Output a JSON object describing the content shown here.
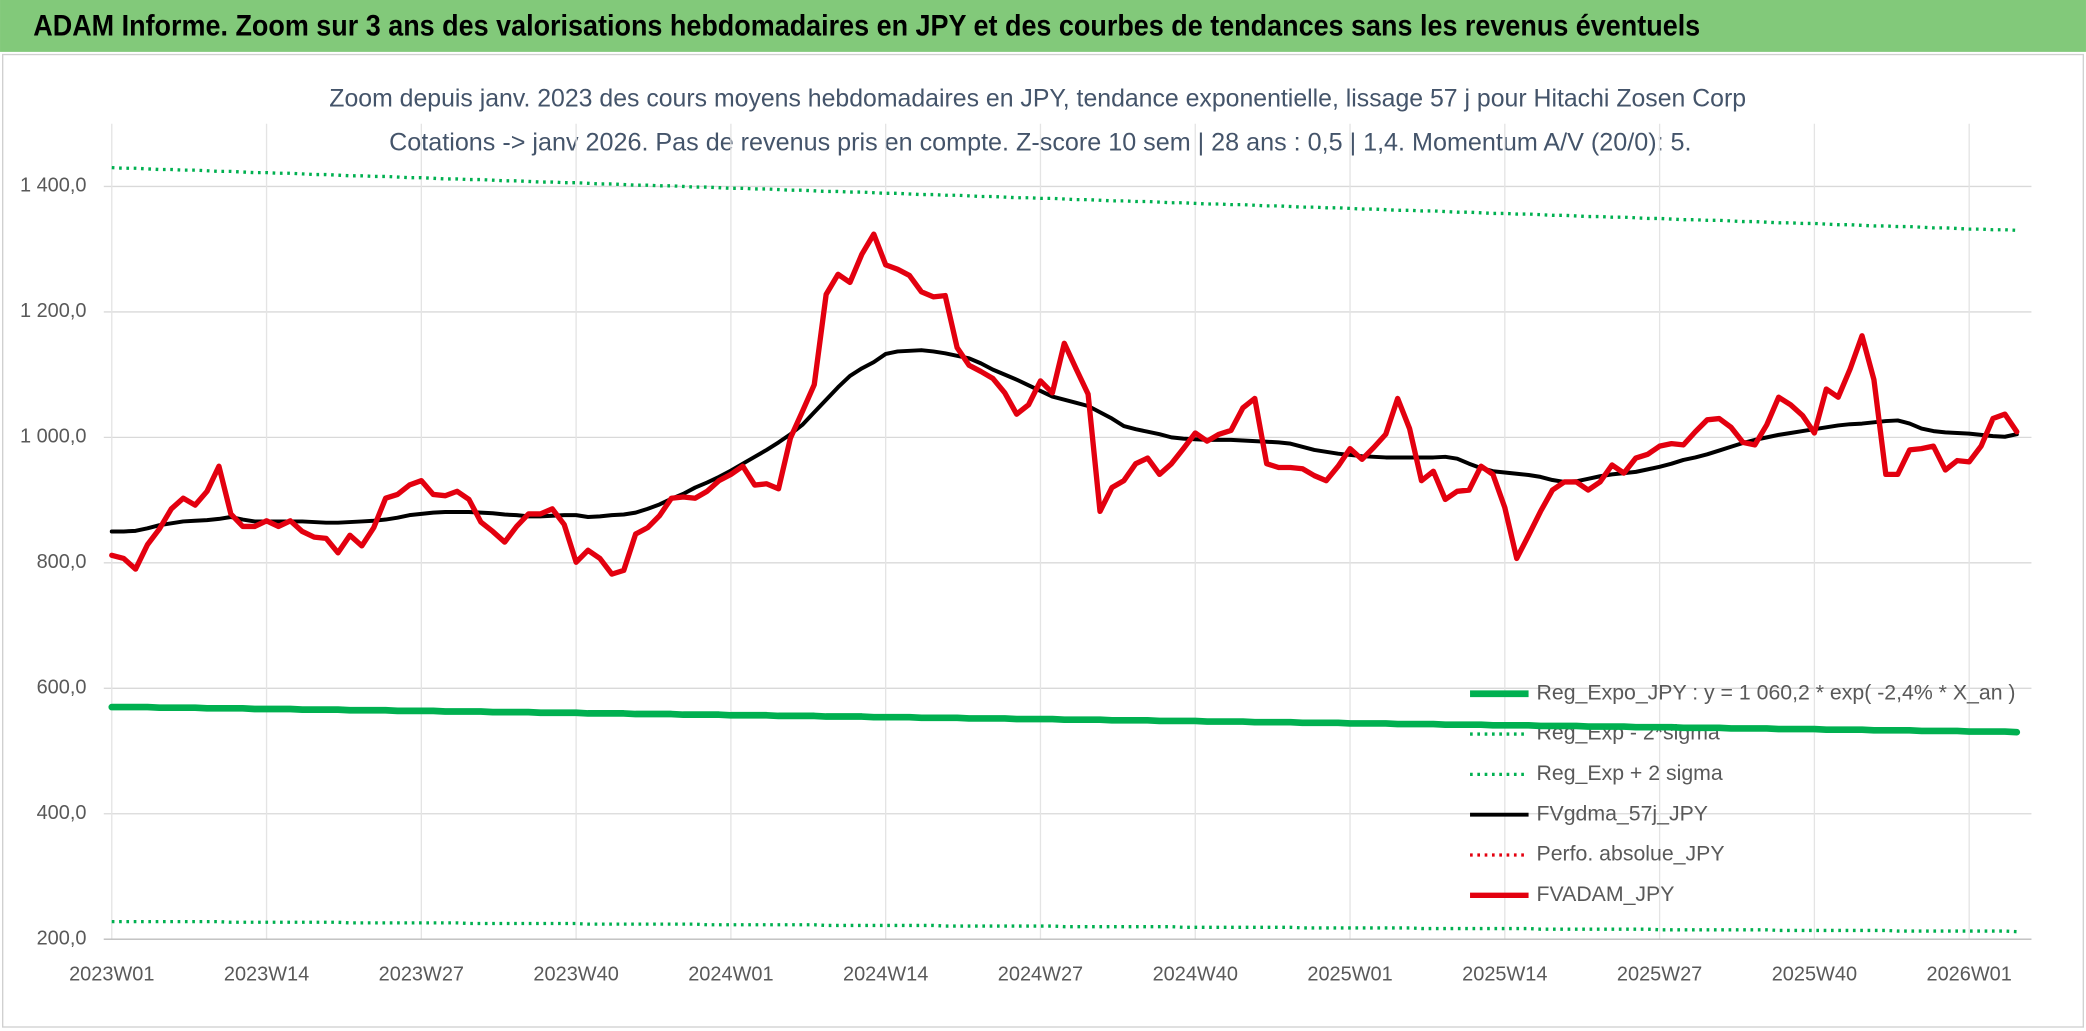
{
  "header": {
    "title": "ADAM Informe. Zoom sur 3 ans des valorisations hebdomadaires en JPY et des courbes de tendances sans les revenus éventuels"
  },
  "chart_data": {
    "type": "line",
    "title": "Zoom depuis janv. 2023 des cours moyens hebdomadaires en JPY, tendance exponentielle, lissage 57 j pour Hitachi Zosen Corp",
    "subtitle": "Cotations -> janv 2026. Pas de revenus pris en compte. Z-score 10 sem | 28 ans : 0,5 | 1,4. Momentum A/V (20/0): 5.",
    "categories": [
      "2023W01",
      null,
      null,
      null,
      null,
      null,
      null,
      null,
      null,
      null,
      null,
      null,
      null,
      "2023W14",
      null,
      null,
      null,
      null,
      null,
      null,
      null,
      null,
      null,
      null,
      null,
      null,
      "2023W27",
      null,
      null,
      null,
      null,
      null,
      null,
      null,
      null,
      null,
      null,
      null,
      null,
      "2023W40",
      null,
      null,
      null,
      null,
      null,
      null,
      null,
      null,
      null,
      null,
      null,
      null,
      "2024W01",
      null,
      null,
      null,
      null,
      null,
      null,
      null,
      null,
      null,
      null,
      null,
      null,
      "2024W14",
      null,
      null,
      null,
      null,
      null,
      null,
      null,
      null,
      null,
      null,
      null,
      null,
      "2024W27",
      null,
      null,
      null,
      null,
      null,
      null,
      null,
      null,
      null,
      null,
      null,
      null,
      "2024W40",
      null,
      null,
      null,
      null,
      null,
      null,
      null,
      null,
      null,
      null,
      null,
      null,
      "2025W01",
      null,
      null,
      null,
      null,
      null,
      null,
      null,
      null,
      null,
      null,
      null,
      null,
      "2025W14",
      null,
      null,
      null,
      null,
      null,
      null,
      null,
      null,
      null,
      null,
      null,
      null,
      "2025W27",
      null,
      null,
      null,
      null,
      null,
      null,
      null,
      null,
      null,
      null,
      null,
      null,
      "2025W40",
      null,
      null,
      null,
      null,
      null,
      null,
      null,
      null,
      null,
      null,
      null,
      null,
      "2026W01",
      null,
      null,
      null,
      null
    ],
    "ylim": [
      200,
      1500
    ],
    "yticks": [
      {
        "value": 200,
        "label": "200,0"
      },
      {
        "value": 400,
        "label": "400,0"
      },
      {
        "value": 600,
        "label": "600,0"
      },
      {
        "value": 800,
        "label": "800,0"
      },
      {
        "value": 1000,
        "label": "1 000,0"
      },
      {
        "value": 1200,
        "label": "1 200,0"
      },
      {
        "value": 1400,
        "label": "1 400,0"
      }
    ],
    "grid": true,
    "legend": "bottom-right",
    "series": [
      {
        "name": "Reg_Expo_JPY : y = 1 060,2 * exp( -2,4% * X_an )",
        "color": "#00b050",
        "style": "solid",
        "values": [
          570,
          570,
          570,
          570,
          569,
          569,
          569,
          569,
          568,
          568,
          568,
          568,
          567,
          567,
          567,
          567,
          566,
          566,
          566,
          566,
          565,
          565,
          565,
          565,
          564,
          564,
          564,
          564,
          563,
          563,
          563,
          563,
          562,
          562,
          562,
          562,
          561,
          561,
          561,
          561,
          560,
          560,
          560,
          560,
          559,
          559,
          559,
          559,
          558,
          558,
          558,
          558,
          557,
          557,
          557,
          557,
          556,
          556,
          556,
          556,
          555,
          555,
          555,
          555,
          554,
          554,
          554,
          554,
          553,
          553,
          553,
          553,
          552,
          552,
          552,
          552,
          551,
          551,
          551,
          551,
          550,
          550,
          550,
          550,
          549,
          549,
          549,
          549,
          548,
          548,
          548,
          548,
          547,
          547,
          547,
          547,
          546,
          546,
          546,
          546,
          545,
          545,
          545,
          545,
          544,
          544,
          544,
          544,
          543,
          543,
          543,
          543,
          542,
          542,
          542,
          542,
          541,
          541,
          541,
          541,
          540,
          540,
          540,
          540,
          539,
          539,
          539,
          539,
          538,
          538,
          538,
          538,
          537,
          537,
          537,
          537,
          536,
          536,
          536,
          536,
          535,
          535,
          535,
          535,
          534,
          534,
          534,
          534,
          533,
          533,
          533,
          533,
          532,
          532,
          532,
          532,
          531,
          531,
          531,
          531,
          530
        ]
      },
      {
        "name": "Reg_Exp - 2*sigma",
        "color": "#00b050",
        "style": "dotted",
        "values": [
          228,
          228,
          228,
          228,
          228,
          228,
          228,
          228,
          228,
          228,
          227,
          227,
          227,
          227,
          227,
          227,
          227,
          227,
          227,
          227,
          226,
          226,
          226,
          226,
          226,
          226,
          226,
          226,
          226,
          226,
          225,
          225,
          225,
          225,
          225,
          225,
          225,
          225,
          225,
          225,
          224,
          224,
          224,
          224,
          224,
          224,
          224,
          224,
          224,
          224,
          223,
          223,
          223,
          223,
          223,
          223,
          223,
          223,
          223,
          223,
          222,
          222,
          222,
          222,
          222,
          222,
          222,
          222,
          222,
          222,
          221,
          221,
          221,
          221,
          221,
          221,
          221,
          221,
          221,
          221,
          220,
          220,
          220,
          220,
          220,
          220,
          220,
          220,
          220,
          220,
          219,
          219,
          219,
          219,
          219,
          219,
          219,
          219,
          219,
          219,
          218,
          218,
          218,
          218,
          218,
          218,
          218,
          218,
          218,
          218,
          217,
          217,
          217,
          217,
          217,
          217,
          217,
          217,
          217,
          217,
          216,
          216,
          216,
          216,
          216,
          216,
          216,
          216,
          216,
          216,
          215,
          215,
          215,
          215,
          215,
          215,
          215,
          215,
          215,
          215,
          214,
          214,
          214,
          214,
          214,
          214,
          214,
          214,
          214,
          214,
          213,
          213,
          213,
          213,
          213,
          213,
          213,
          213,
          213,
          213,
          212
        ]
      },
      {
        "name": "Reg_Exp + 2 sigma",
        "color": "#00b050",
        "style": "dotted",
        "values": [
          1430,
          1429,
          1429,
          1428,
          1427,
          1427,
          1426,
          1426,
          1425,
          1424,
          1424,
          1423,
          1422,
          1422,
          1421,
          1421,
          1420,
          1419,
          1419,
          1418,
          1417,
          1417,
          1416,
          1416,
          1415,
          1414,
          1414,
          1413,
          1412,
          1412,
          1411,
          1411,
          1410,
          1409,
          1409,
          1408,
          1407,
          1407,
          1406,
          1406,
          1405,
          1404,
          1404,
          1403,
          1402,
          1402,
          1401,
          1401,
          1400,
          1399,
          1399,
          1398,
          1397,
          1397,
          1396,
          1396,
          1395,
          1394,
          1394,
          1393,
          1392,
          1392,
          1391,
          1391,
          1390,
          1389,
          1389,
          1388,
          1387,
          1387,
          1386,
          1386,
          1385,
          1384,
          1384,
          1383,
          1382,
          1382,
          1381,
          1381,
          1380,
          1379,
          1379,
          1378,
          1377,
          1377,
          1376,
          1376,
          1375,
          1374,
          1374,
          1373,
          1372,
          1372,
          1371,
          1371,
          1370,
          1369,
          1369,
          1368,
          1367,
          1367,
          1366,
          1366,
          1365,
          1364,
          1364,
          1363,
          1362,
          1362,
          1361,
          1361,
          1360,
          1359,
          1359,
          1358,
          1357,
          1357,
          1356,
          1356,
          1355,
          1354,
          1354,
          1353,
          1352,
          1352,
          1351,
          1351,
          1350,
          1349,
          1349,
          1348,
          1347,
          1347,
          1346,
          1346,
          1345,
          1344,
          1344,
          1343,
          1342,
          1342,
          1341,
          1341,
          1340,
          1339,
          1339,
          1338,
          1337,
          1337,
          1336,
          1336,
          1335,
          1334,
          1334,
          1333,
          1332,
          1332,
          1331,
          1331,
          1330
        ]
      },
      {
        "name": "FVgdma_57j_JPY",
        "color": "#000000",
        "style": "solid",
        "values": [
          850,
          850,
          851,
          855,
          860,
          863,
          866,
          867,
          868,
          870,
          873,
          869,
          866,
          866,
          866,
          866,
          866,
          865,
          864,
          864,
          865,
          866,
          867,
          869,
          872,
          876,
          878,
          880,
          881,
          881,
          881,
          880,
          879,
          877,
          876,
          874,
          874,
          875,
          876,
          876,
          873,
          874,
          876,
          877,
          880,
          886,
          893,
          902,
          910,
          920,
          928,
          937,
          947,
          958,
          969,
          980,
          992,
          1005,
          1020,
          1040,
          1060,
          1080,
          1098,
          1110,
          1120,
          1133,
          1137,
          1138,
          1139,
          1137,
          1134,
          1130,
          1126,
          1118,
          1108,
          1100,
          1092,
          1083,
          1074,
          1065,
          1060,
          1055,
          1050,
          1040,
          1030,
          1018,
          1013,
          1009,
          1005,
          1000,
          998,
          997,
          996,
          996,
          996,
          995,
          994,
          993,
          992,
          990,
          985,
          980,
          977,
          974,
          972,
          970,
          969,
          968,
          968,
          968,
          968,
          968,
          969,
          966,
          958,
          951,
          946,
          944,
          942,
          940,
          937,
          932,
          929,
          930,
          934,
          938,
          941,
          943,
          945,
          949,
          953,
          958,
          964,
          968,
          973,
          979,
          985,
          991,
          996,
          1000,
          1004,
          1007,
          1010,
          1013,
          1016,
          1019,
          1021,
          1022,
          1024,
          1026,
          1027,
          1022,
          1014,
          1010,
          1008,
          1007,
          1006,
          1004,
          1002,
          1001,
          1005
        ]
      },
      {
        "name": "Perfo. absolue_JPY",
        "color": "#e3000f",
        "style": "dotted",
        "values": [
          null,
          null,
          null,
          null,
          null,
          null,
          null,
          null,
          null,
          null,
          null,
          null,
          null,
          null,
          null,
          null,
          null,
          null,
          null,
          null,
          null,
          null,
          null,
          null,
          null,
          null,
          null,
          null,
          null,
          null,
          null,
          null,
          null,
          null,
          null,
          null,
          null,
          null,
          null,
          null,
          null,
          null,
          null,
          null,
          null,
          null,
          null,
          null,
          null,
          null,
          null,
          null,
          null,
          null,
          null,
          null,
          null,
          null,
          null,
          null,
          null,
          null,
          null,
          null,
          null,
          null,
          null,
          null,
          null,
          null,
          null,
          null,
          null,
          null,
          null,
          null,
          null,
          null,
          null,
          null,
          null,
          null,
          null,
          null,
          null,
          null,
          null,
          null,
          null,
          null,
          null,
          null,
          null,
          null,
          null,
          null,
          null,
          null,
          null,
          null,
          null,
          null,
          null,
          null,
          null,
          null,
          null,
          null,
          null,
          null,
          null,
          null,
          null,
          null,
          null,
          null,
          null,
          null,
          null,
          null,
          null,
          null,
          null,
          null,
          null,
          null,
          null,
          null,
          null,
          null,
          null,
          null,
          null,
          null,
          null,
          null,
          null,
          null,
          null,
          null,
          null,
          null,
          null,
          null,
          null,
          null,
          null,
          null,
          null,
          null,
          null,
          null,
          null,
          null,
          null,
          null,
          null,
          null,
          null,
          null,
          null
        ]
      },
      {
        "name": "FVADAM_JPY",
        "color": "#e3000f",
        "style": "solid",
        "values": [
          812,
          807,
          790,
          829,
          854,
          886,
          903,
          892,
          914,
          954,
          878,
          858,
          858,
          867,
          858,
          867,
          850,
          841,
          839,
          816,
          844,
          827,
          856,
          903,
          909,
          924,
          931,
          909,
          907,
          914,
          901,
          865,
          850,
          833,
          858,
          878,
          878,
          886,
          861,
          801,
          820,
          807,
          782,
          788,
          846,
          856,
          875,
          903,
          905,
          903,
          914,
          931,
          941,
          954,
          924,
          926,
          918,
          999,
          1041,
          1084,
          1228,
          1260,
          1247,
          1292,
          1324,
          1275,
          1268,
          1258,
          1232,
          1224,
          1226,
          1143,
          1115,
          1105,
          1094,
          1071,
          1037,
          1052,
          1090,
          1071,
          1150,
          1109,
          1069,
          882,
          920,
          931,
          958,
          967,
          941,
          958,
          982,
          1007,
          994,
          1005,
          1011,
          1047,
          1062,
          958,
          952,
          952,
          950,
          939,
          931,
          954,
          982,
          965,
          984,
          1005,
          1062,
          1014,
          931,
          946,
          901,
          914,
          916,
          954,
          941,
          888,
          807,
          844,
          882,
          916,
          929,
          929,
          916,
          929,
          956,
          943,
          967,
          973,
          986,
          990,
          988,
          1009,
          1028,
          1030,
          1016,
          992,
          988,
          1020,
          1064,
          1052,
          1035,
          1007,
          1077,
          1064,
          1109,
          1162,
          1092,
          941,
          941,
          980,
          982,
          986,
          948,
          963,
          961,
          986,
          1030,
          1037,
          1009
        ]
      }
    ]
  }
}
